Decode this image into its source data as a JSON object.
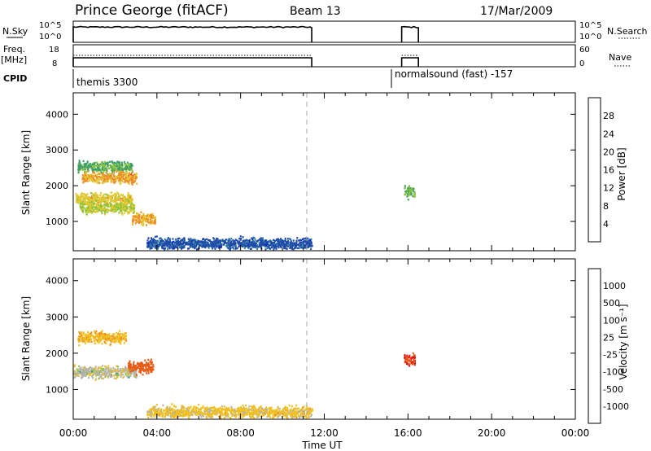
{
  "header": {
    "station": "Prince George (fitACF)",
    "beam": "Beam 13",
    "date": "17/Mar/2009"
  },
  "summary_panels": {
    "nsky_label": "N.Sky",
    "freq_label_1": "Freq.",
    "freq_label_2": "[MHz]",
    "cpid_label": "CPID",
    "nsearch_label": "N.Search",
    "nave_label": "Nave",
    "noise_left_ticks": [
      "10^5",
      "10^0"
    ],
    "noise_right_ticks": [
      "10^5",
      "10^0"
    ],
    "freq_left_ticks": [
      "18",
      "8"
    ],
    "nave_right_ticks": [
      "60",
      "0"
    ],
    "cpid_segments": [
      {
        "name": "themis 3300",
        "start_hour": 0.0,
        "end_hour": 11.4
      },
      {
        "name": "normalsound (fast) -157",
        "start_hour": 15.7,
        "end_hour": 24.0
      }
    ],
    "active_intervals_hours": [
      [
        0.0,
        11.4
      ],
      [
        15.7,
        16.5
      ]
    ]
  },
  "power_panel": {
    "ylabel": "Slant Range [km]",
    "colorbar_label": "Power [dB]",
    "colorbar_ticks": [
      "28",
      "24",
      "20",
      "16",
      "12",
      "8",
      "4"
    ],
    "colors": [
      "#0c28c8",
      "#1e4aa8",
      "#2e7ea2",
      "#3e9e6a",
      "#8cc43c",
      "#e0c830",
      "#f08a28",
      "#e84a1e",
      "#e01010"
    ]
  },
  "velocity_panel": {
    "ylabel": "Slant Range [km]",
    "colorbar_label": "Velocity [m s⁻¹]",
    "colorbar_ticks": [
      "1000",
      "500",
      "100",
      "25",
      "-25",
      "-100",
      "-500",
      "-1000"
    ],
    "colors": [
      "#0c28c8",
      "#1e4aa8",
      "#2e7ea2",
      "#3e9e6a",
      "#8cc43c",
      "#b4b4b4",
      "#f0c020",
      "#f09020",
      "#e85c18",
      "#e01010"
    ]
  },
  "x_axis": {
    "label": "Time UT",
    "ticks": [
      "00:00",
      "04:00",
      "08:00",
      "12:00",
      "16:00",
      "20:00",
      "00:00"
    ]
  },
  "y_ticks": [
    "4000",
    "3000",
    "2000",
    "1000"
  ],
  "chart_data": {
    "type": "heatmap",
    "title": "Prince George (fitACF)",
    "xlabel": "Time UT",
    "ylabel": "Slant Range [km]",
    "xlim": [
      0,
      24
    ],
    "ylim": [
      180,
      4600
    ],
    "y_ticks": [
      1000,
      2000,
      3000,
      4000
    ],
    "gap_line_hour": 11.4,
    "power_bands": [
      {
        "t_start": 0.2,
        "t_end": 2.8,
        "range_km": 2550,
        "power_db": 14
      },
      {
        "t_start": 0.4,
        "t_end": 3.0,
        "range_km": 2250,
        "power_db": 22
      },
      {
        "t_start": 0.1,
        "t_end": 2.8,
        "range_km": 1650,
        "power_db": 20
      },
      {
        "t_start": 0.3,
        "t_end": 2.9,
        "range_km": 1400,
        "power_db": 18
      },
      {
        "t_start": 2.8,
        "t_end": 3.9,
        "range_km": 1100,
        "power_db": 22
      },
      {
        "t_start": 3.5,
        "t_end": 11.4,
        "range_km": 400,
        "power_db": 6
      },
      {
        "t_start": 15.8,
        "t_end": 16.3,
        "range_km": 1850,
        "power_db": 14
      }
    ],
    "velocity_bands": [
      {
        "t_start": 0.2,
        "t_end": 2.5,
        "range_km": 2450,
        "velocity_ms": -80
      },
      {
        "t_start": 0.0,
        "t_end": 3.0,
        "range_km": 1500,
        "velocity_ms": 0
      },
      {
        "t_start": 2.6,
        "t_end": 3.8,
        "range_km": 1650,
        "velocity_ms": -300
      },
      {
        "t_start": 3.5,
        "t_end": 11.4,
        "range_km": 400,
        "velocity_ms": -50
      },
      {
        "t_start": 15.8,
        "t_end": 16.3,
        "range_km": 1850,
        "velocity_ms": -500
      }
    ]
  }
}
